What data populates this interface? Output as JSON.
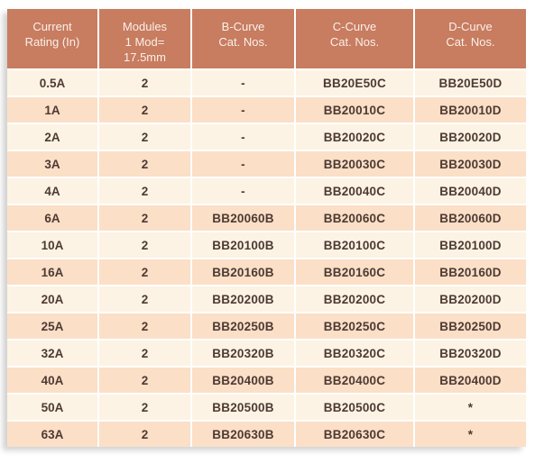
{
  "catalog_table": {
    "headers": [
      "Current\nRating (In)",
      "Modules\n1 Mod=\n17.5mm",
      "B-Curve\nCat. Nos.",
      "C-Curve\nCat. Nos.",
      "D-Curve\nCat. Nos."
    ],
    "rows": [
      [
        "0.5A",
        "2",
        "-",
        "BB20E50C",
        "BB20E50D"
      ],
      [
        "1A",
        "2",
        "-",
        "BB20010C",
        "BB20010D"
      ],
      [
        "2A",
        "2",
        "-",
        "BB20020C",
        "BB20020D"
      ],
      [
        "3A",
        "2",
        "-",
        "BB20030C",
        "BB20030D"
      ],
      [
        "4A",
        "2",
        "-",
        "BB20040C",
        "BB20040D"
      ],
      [
        "6A",
        "2",
        "BB20060B",
        "BB20060C",
        "BB20060D"
      ],
      [
        "10A",
        "2",
        "BB20100B",
        "BB20100C",
        "BB20100D"
      ],
      [
        "16A",
        "2",
        "BB20160B",
        "BB20160C",
        "BB20160D"
      ],
      [
        "20A",
        "2",
        "BB20200B",
        "BB20200C",
        "BB20200D"
      ],
      [
        "25A",
        "2",
        "BB20250B",
        "BB20250C",
        "BB20250D"
      ],
      [
        "32A",
        "2",
        "BB20320B",
        "BB20320C",
        "BB20320D"
      ],
      [
        "40A",
        "2",
        "BB20400B",
        "BB20400C",
        "BB20400D"
      ],
      [
        "50A",
        "2",
        "BB20500B",
        "BB20500C",
        "*"
      ],
      [
        "63A",
        "2",
        "BB20630B",
        "BB20630C",
        "*"
      ]
    ]
  },
  "colors": {
    "header_background": "#C87C60",
    "header_text": "#F9F1EA",
    "row_light": "#FCF3E4",
    "row_dark": "#FBDFC7",
    "cell_text": "#4E3A33",
    "grid_lines": "#FFFFFF",
    "page_background": "#FFFFFF"
  }
}
